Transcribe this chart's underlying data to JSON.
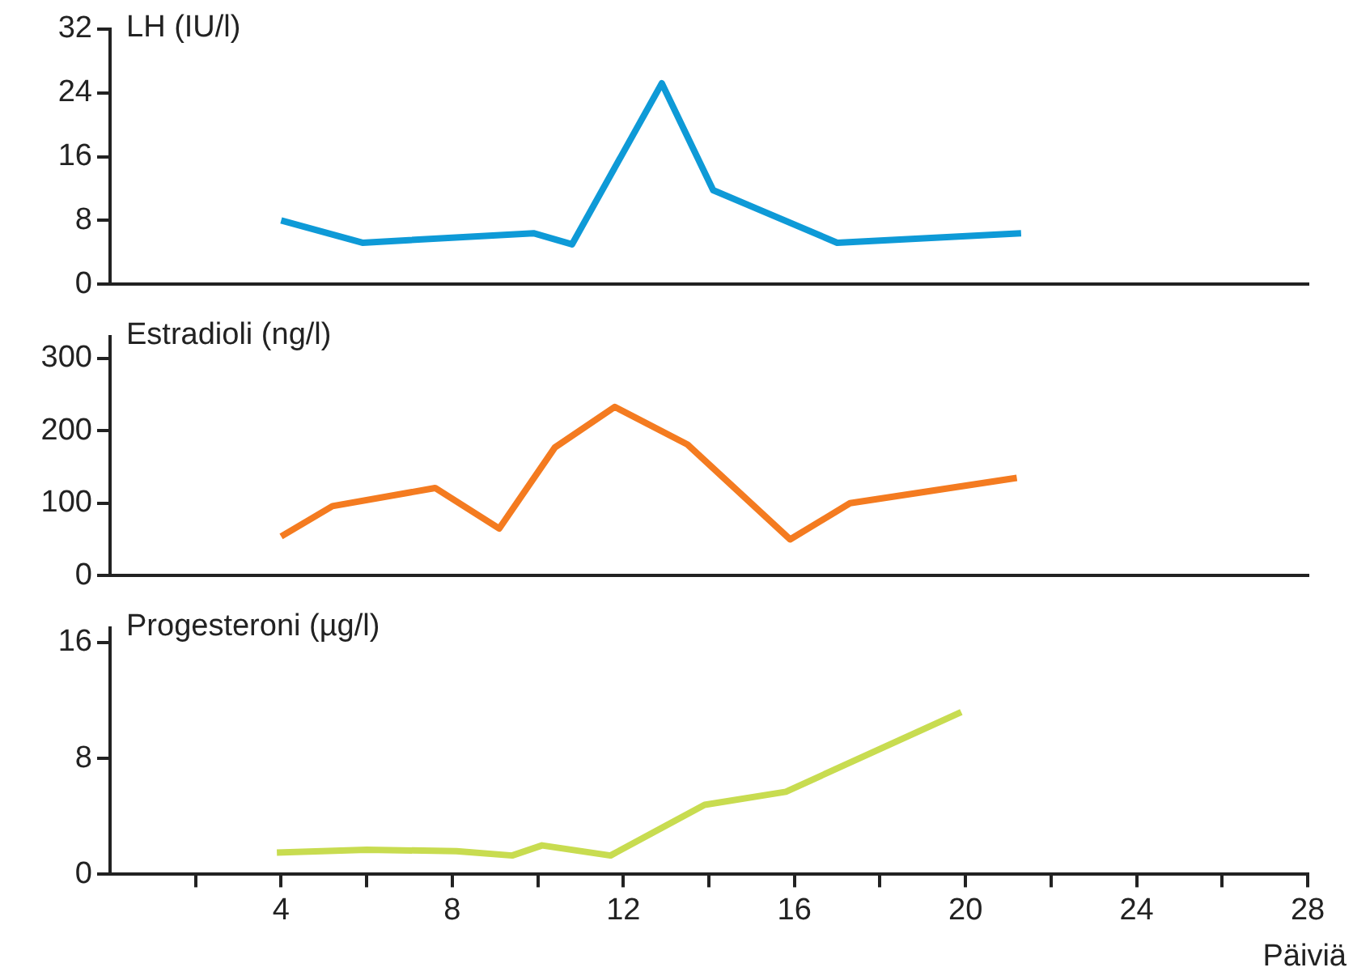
{
  "chart_data": [
    {
      "type": "line",
      "title": "LH (IU/l)",
      "xlim": [
        0,
        28
      ],
      "ylim": [
        0,
        32
      ],
      "yticks": [
        0,
        8,
        16,
        24,
        32
      ],
      "tick_labels": "y",
      "marker": "none",
      "grid": false,
      "legend": false,
      "series": [
        {
          "color": "#0e9ad7",
          "x": [
            4,
            5.9,
            9.9,
            10.8,
            12.9,
            14.1,
            17,
            21.3
          ],
          "values": [
            8,
            5.2,
            6.4,
            5,
            25.2,
            11.8,
            5.2,
            6.4
          ]
        }
      ]
    },
    {
      "type": "line",
      "title": "Estradioli (ng/l)",
      "xlim": [
        0,
        28
      ],
      "ylim": [
        0,
        330
      ],
      "yticks": [
        0,
        100,
        200,
        300
      ],
      "tick_labels": "y",
      "marker": "none",
      "grid": false,
      "legend": false,
      "series": [
        {
          "color": "#f47b20",
          "x": [
            4,
            5.2,
            7.6,
            9.1,
            10.4,
            11.8,
            13.5,
            15.9,
            17.3,
            21.2
          ],
          "values": [
            54,
            96,
            121,
            65,
            177,
            233,
            181,
            50,
            100,
            135
          ]
        }
      ]
    },
    {
      "type": "line",
      "title": "Progesteroni (µg/l)",
      "xlabel": "Päiviä",
      "xlim": [
        0,
        28
      ],
      "xticks": [
        {
          "value": 2,
          "label": null
        },
        4,
        {
          "value": 6,
          "label": null
        },
        8,
        {
          "value": 10,
          "label": null
        },
        12,
        {
          "value": 14,
          "label": null
        },
        16,
        {
          "value": 18,
          "label": null
        },
        20,
        {
          "value": 22,
          "label": null
        },
        24,
        {
          "value": 26,
          "label": null
        },
        28
      ],
      "ylim": [
        0,
        17
      ],
      "yticks": [
        0,
        8,
        16
      ],
      "marker": "none",
      "grid": false,
      "legend": false,
      "series": [
        {
          "color": "#c8dc50",
          "x": [
            3.9,
            6,
            8.1,
            9.4,
            10.1,
            11.7,
            13.9,
            15.8,
            19.9
          ],
          "values": [
            1.5,
            1.7,
            1.6,
            1.3,
            2,
            1.3,
            4.8,
            5.7,
            11.2
          ]
        }
      ]
    }
  ]
}
